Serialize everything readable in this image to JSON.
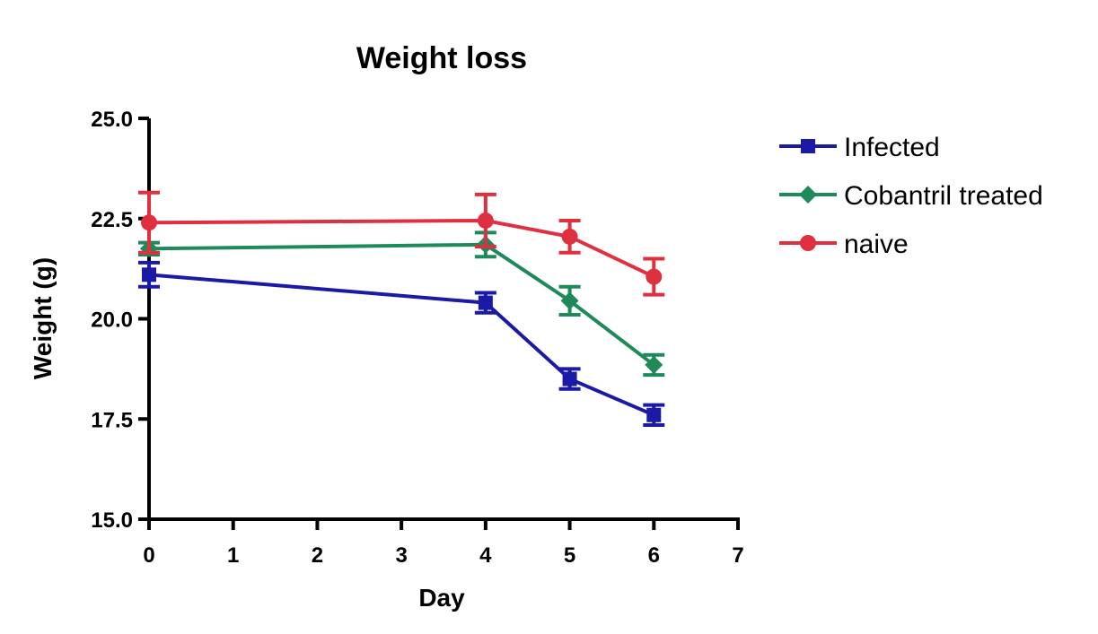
{
  "chart_data": {
    "type": "line",
    "title": "Weight loss",
    "xlabel": "Day",
    "ylabel": "Weight (g)",
    "xlim": [
      0,
      7
    ],
    "ylim": [
      15,
      25
    ],
    "xticks": [
      0,
      1,
      2,
      3,
      4,
      5,
      6,
      7
    ],
    "yticks": [
      15,
      17.5,
      20,
      22.5,
      25
    ],
    "x_tick_labels": [
      "0",
      "1",
      "2",
      "3",
      "4",
      "5",
      "6",
      "7"
    ],
    "y_tick_labels": [
      "15.0",
      "17.5",
      "20.0",
      "22.5",
      "25.0"
    ],
    "grid": false,
    "legend_position": "right",
    "series": [
      {
        "name": "Infected",
        "color": "#1a1aa6",
        "marker": "square",
        "x": [
          0,
          4,
          5,
          6
        ],
        "y": [
          21.1,
          20.4,
          18.5,
          17.6
        ],
        "error": [
          0.3,
          0.25,
          0.25,
          0.25
        ]
      },
      {
        "name": "Cobantril treated",
        "color": "#1e8a5a",
        "marker": "diamond",
        "x": [
          0,
          4,
          5,
          6
        ],
        "y": [
          21.75,
          21.85,
          20.45,
          18.85
        ],
        "error": [
          0.15,
          0.3,
          0.35,
          0.25
        ]
      },
      {
        "name": "naive",
        "color": "#e03040",
        "marker": "circle",
        "x": [
          0,
          4,
          5,
          6
        ],
        "y": [
          22.4,
          22.45,
          22.05,
          21.05
        ],
        "error": [
          0.75,
          0.65,
          0.4,
          0.45
        ]
      }
    ]
  }
}
